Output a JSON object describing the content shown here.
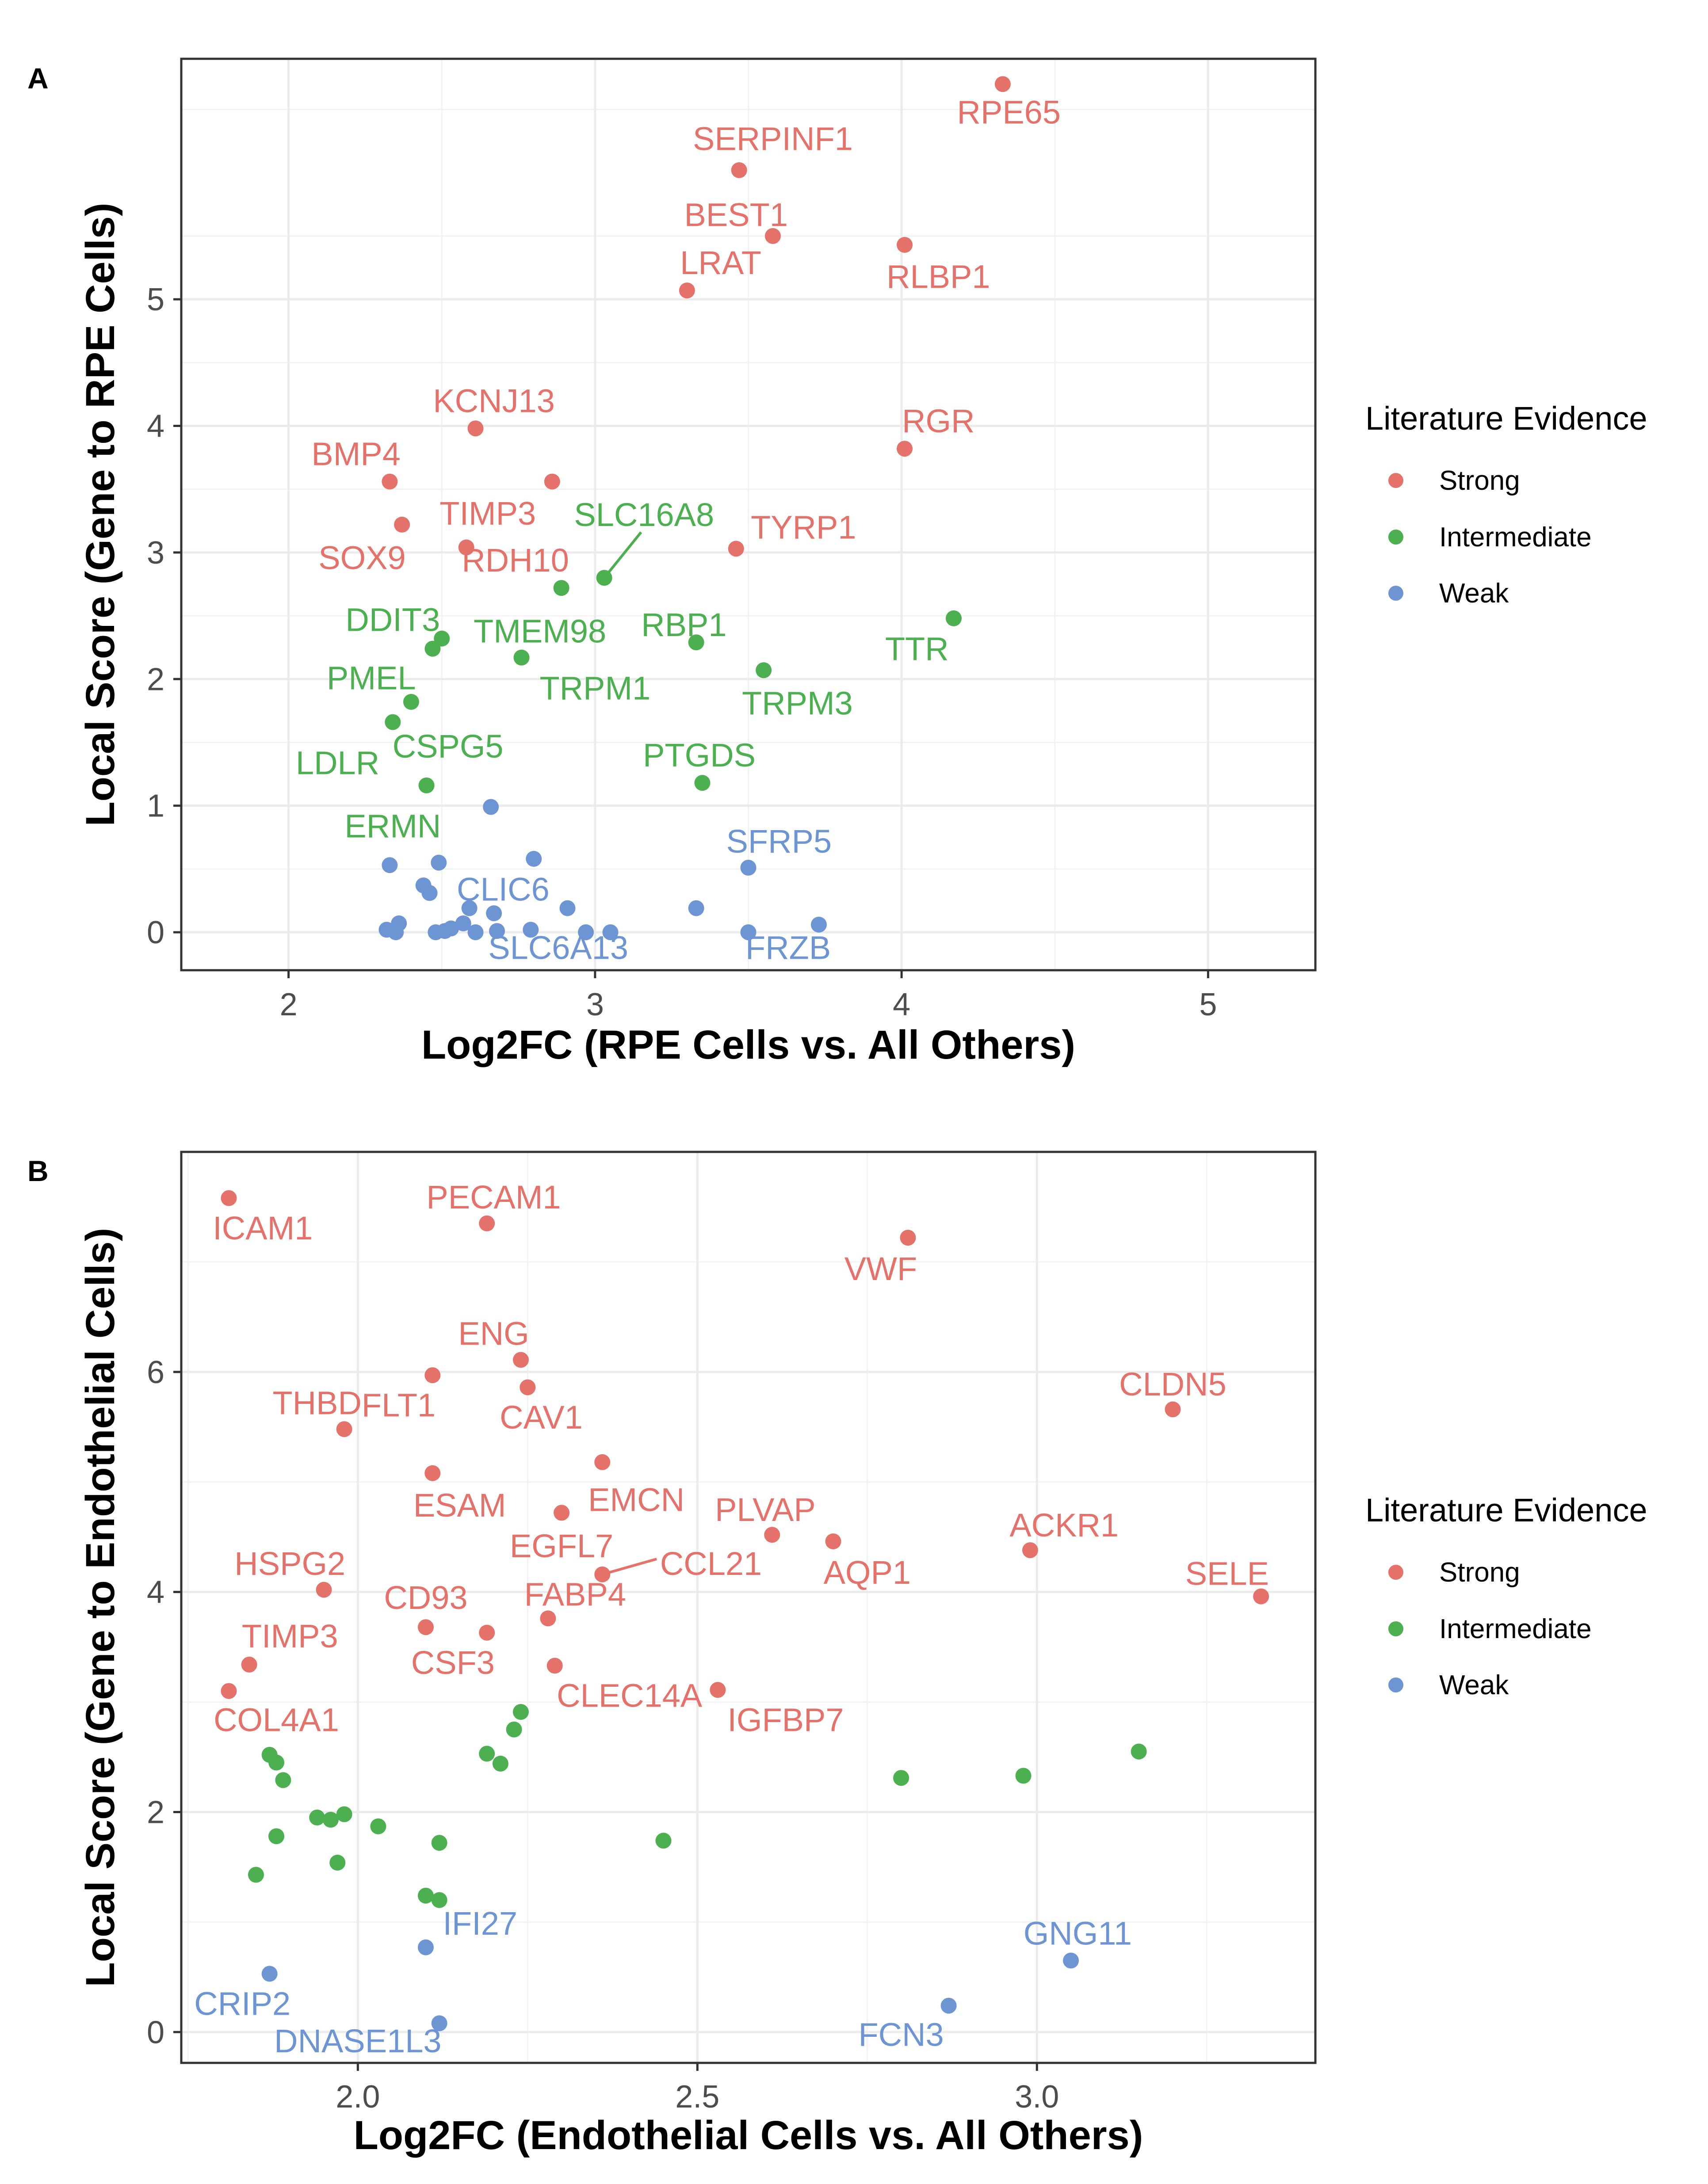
{
  "colors": {
    "Strong": "#e5726a",
    "Intermediate": "#4caf50",
    "Weak": "#6e95d3"
  },
  "chart_data": [
    {
      "panel": "A",
      "type": "scatter",
      "xlabel": "Log2FC (RPE Cells vs. All Others)",
      "ylabel": "Local Score (Gene to RPE Cells)",
      "xlim": [
        1.65,
        5.35
      ],
      "ylim": [
        -0.3,
        6.9
      ],
      "xticks": [
        2,
        3,
        4,
        5
      ],
      "yticks": [
        0,
        1,
        2,
        3,
        4,
        5
      ],
      "grid": true,
      "legend_title": "Literature Evidence",
      "legend_entries": [
        "Strong",
        "Intermediate",
        "Weak"
      ],
      "legend_position": "right",
      "points": [
        {
          "x": 4.33,
          "y": 6.7,
          "label": "RPE65",
          "cat": "Strong"
        },
        {
          "x": 3.47,
          "y": 6.02,
          "label": "SERPINF1",
          "cat": "Strong"
        },
        {
          "x": 3.58,
          "y": 5.5,
          "label": "BEST1",
          "cat": "Strong"
        },
        {
          "x": 4.01,
          "y": 5.43,
          "label": "RLBP1",
          "cat": "Strong"
        },
        {
          "x": 3.3,
          "y": 5.07,
          "label": "LRAT",
          "cat": "Strong"
        },
        {
          "x": 2.61,
          "y": 3.98,
          "label": "KCNJ13",
          "cat": "Strong"
        },
        {
          "x": 4.01,
          "y": 3.82,
          "label": "RGR",
          "cat": "Strong"
        },
        {
          "x": 2.33,
          "y": 3.56,
          "label": "BMP4",
          "cat": "Strong"
        },
        {
          "x": 2.86,
          "y": 3.56,
          "label": "TIMP3",
          "cat": "Strong"
        },
        {
          "x": 2.37,
          "y": 3.22,
          "label": "SOX9",
          "cat": "Strong"
        },
        {
          "x": 2.58,
          "y": 3.04,
          "label": "RDH10",
          "cat": "Strong"
        },
        {
          "x": 3.46,
          "y": 3.03,
          "label": "TYRP1",
          "cat": "Strong"
        },
        {
          "x": 3.03,
          "y": 2.8,
          "label": "SLC16A8",
          "cat": "Intermediate"
        },
        {
          "x": 2.89,
          "y": 2.72,
          "label": "TMEM98",
          "cat": "Intermediate"
        },
        {
          "x": 4.17,
          "y": 2.48,
          "label": "TTR",
          "cat": "Intermediate"
        },
        {
          "x": 2.5,
          "y": 2.32,
          "label": "DDIT3",
          "cat": "Intermediate"
        },
        {
          "x": 3.33,
          "y": 2.29,
          "label": "RBP1",
          "cat": "Intermediate"
        },
        {
          "x": 2.47,
          "y": 2.24,
          "label": "",
          "cat": "Intermediate"
        },
        {
          "x": 2.76,
          "y": 2.17,
          "label": "TRPM1",
          "cat": "Intermediate"
        },
        {
          "x": 3.55,
          "y": 2.07,
          "label": "TRPM3",
          "cat": "Intermediate"
        },
        {
          "x": 2.4,
          "y": 1.82,
          "label": "PMEL",
          "cat": "Intermediate"
        },
        {
          "x": 2.34,
          "y": 1.66,
          "label": "CSPG5",
          "cat": "Intermediate"
        },
        {
          "x": 2.45,
          "y": 1.16,
          "label": "LDLR",
          "cat": "Intermediate"
        },
        {
          "x": 3.35,
          "y": 1.18,
          "label": "PTGDS",
          "cat": "Intermediate"
        },
        {
          "x": 2.66,
          "y": 0.99,
          "label": "",
          "cat": "Weak"
        },
        {
          "x": 2.8,
          "y": 0.58,
          "label": "",
          "cat": "Weak"
        },
        {
          "x": 2.33,
          "y": 0.53,
          "label": "",
          "cat": "Weak"
        },
        {
          "x": 2.49,
          "y": 0.55,
          "label": "",
          "cat": "Weak"
        },
        {
          "x": 3.5,
          "y": 0.51,
          "label": "SFRP5",
          "cat": "Weak"
        },
        {
          "x": 2.44,
          "y": 0.37,
          "label": "",
          "cat": "Weak"
        },
        {
          "x": 2.46,
          "y": 0.31,
          "label": "",
          "cat": "Weak"
        },
        {
          "x": 2.59,
          "y": 0.19,
          "label": "",
          "cat": "Weak"
        },
        {
          "x": 2.67,
          "y": 0.15,
          "label": "",
          "cat": "Weak"
        },
        {
          "x": 2.91,
          "y": 0.19,
          "label": "",
          "cat": "Weak"
        },
        {
          "x": 3.33,
          "y": 0.19,
          "label": "",
          "cat": "Weak"
        },
        {
          "x": 2.36,
          "y": 0.07,
          "label": "",
          "cat": "Weak"
        },
        {
          "x": 2.57,
          "y": 0.07,
          "label": "",
          "cat": "Weak"
        },
        {
          "x": 3.73,
          "y": 0.06,
          "label": "",
          "cat": "Weak"
        },
        {
          "x": 2.32,
          "y": 0.02,
          "label": "",
          "cat": "Weak"
        },
        {
          "x": 2.35,
          "y": 0.0,
          "label": "",
          "cat": "Weak"
        },
        {
          "x": 2.48,
          "y": 0.0,
          "label": "",
          "cat": "Weak"
        },
        {
          "x": 2.51,
          "y": 0.01,
          "label": "",
          "cat": "Weak"
        },
        {
          "x": 2.53,
          "y": 0.03,
          "label": "",
          "cat": "Weak"
        },
        {
          "x": 2.61,
          "y": 0.0,
          "label": "",
          "cat": "Weak"
        },
        {
          "x": 2.68,
          "y": 0.01,
          "label": "",
          "cat": "Weak"
        },
        {
          "x": 2.79,
          "y": 0.02,
          "label": "",
          "cat": "Weak"
        },
        {
          "x": 2.97,
          "y": 0.0,
          "label": "",
          "cat": "Weak"
        },
        {
          "x": 3.05,
          "y": 0.0,
          "label": "",
          "cat": "Weak"
        },
        {
          "x": 3.5,
          "y": 0.0,
          "label": "",
          "cat": "Weak"
        }
      ],
      "text_labels": [
        {
          "text": "RPE65",
          "x": 4.35,
          "y": 6.48,
          "cat": "Strong"
        },
        {
          "text": "SERPINF1",
          "x": 3.58,
          "y": 6.27,
          "cat": "Strong"
        },
        {
          "text": "BEST1",
          "x": 3.46,
          "y": 5.67,
          "cat": "Strong"
        },
        {
          "text": "RLBP1",
          "x": 4.12,
          "y": 5.18,
          "cat": "Strong"
        },
        {
          "text": "LRAT",
          "x": 3.41,
          "y": 5.29,
          "cat": "Strong"
        },
        {
          "text": "KCNJ13",
          "x": 2.67,
          "y": 4.2,
          "cat": "Strong"
        },
        {
          "text": "RGR",
          "x": 4.12,
          "y": 4.04,
          "cat": "Strong"
        },
        {
          "text": "BMP4",
          "x": 2.22,
          "y": 3.78,
          "cat": "Strong"
        },
        {
          "text": "TIMP3",
          "x": 2.65,
          "y": 3.31,
          "cat": "Strong"
        },
        {
          "text": "SOX9",
          "x": 2.24,
          "y": 2.96,
          "cat": "Strong"
        },
        {
          "text": "RDH10",
          "x": 2.74,
          "y": 2.94,
          "cat": "Strong"
        },
        {
          "text": "TYRP1",
          "x": 3.68,
          "y": 3.2,
          "cat": "Strong"
        },
        {
          "text": "SLC16A8",
          "x": 3.16,
          "y": 3.3,
          "cat": "Intermediate"
        },
        {
          "text": "TMEM98",
          "x": 2.82,
          "y": 2.38,
          "cat": "Intermediate"
        },
        {
          "text": "TTR",
          "x": 4.05,
          "y": 2.24,
          "cat": "Intermediate"
        },
        {
          "text": "DDIT3",
          "x": 2.34,
          "y": 2.47,
          "cat": "Intermediate"
        },
        {
          "text": "RBP1",
          "x": 3.29,
          "y": 2.43,
          "cat": "Intermediate"
        },
        {
          "text": "TRPM1",
          "x": 3.0,
          "y": 1.93,
          "cat": "Intermediate"
        },
        {
          "text": "TRPM3",
          "x": 3.66,
          "y": 1.81,
          "cat": "Intermediate"
        },
        {
          "text": "PMEL",
          "x": 2.27,
          "y": 2.01,
          "cat": "Intermediate"
        },
        {
          "text": "CSPG5",
          "x": 2.52,
          "y": 1.47,
          "cat": "Intermediate"
        },
        {
          "text": "LDLR",
          "x": 2.16,
          "y": 1.34,
          "cat": "Intermediate"
        },
        {
          "text": "PTGDS",
          "x": 3.34,
          "y": 1.4,
          "cat": "Intermediate"
        },
        {
          "text": "ERMN",
          "x": 2.34,
          "y": 0.84,
          "cat": "Intermediate"
        },
        {
          "text": "SFRP5",
          "x": 3.6,
          "y": 0.72,
          "cat": "Weak"
        },
        {
          "text": "CLIC6",
          "x": 2.7,
          "y": 0.34,
          "cat": "Weak"
        },
        {
          "text": "SLC6A13",
          "x": 2.88,
          "y": -0.12,
          "cat": "Weak"
        },
        {
          "text": "FRZB",
          "x": 3.63,
          "y": -0.12,
          "cat": "Weak"
        }
      ],
      "leader_lines": [
        {
          "from": [
            3.03,
            2.8
          ],
          "to": [
            3.15,
            3.16
          ],
          "cat": "Intermediate"
        }
      ]
    },
    {
      "panel": "B",
      "type": "scatter",
      "xlabel": "Log2FC (Endothelial Cells vs. All Others)",
      "ylabel": "Local Score (Gene to Endothelial Cells)",
      "xlim": [
        1.74,
        3.41
      ],
      "ylim": [
        -0.28,
        8.0
      ],
      "xticks": [
        2.0,
        2.5,
        3.0
      ],
      "yticks": [
        0,
        2,
        4,
        6
      ],
      "grid": true,
      "legend_title": "Literature Evidence",
      "legend_entries": [
        "Strong",
        "Intermediate",
        "Weak"
      ],
      "legend_position": "right",
      "points": [
        {
          "x": 1.81,
          "y": 7.58,
          "label": "ICAM1",
          "cat": "Strong"
        },
        {
          "x": 2.19,
          "y": 7.35,
          "label": "PECAM1",
          "cat": "Strong"
        },
        {
          "x": 2.81,
          "y": 7.22,
          "label": "VWF",
          "cat": "Strong"
        },
        {
          "x": 2.24,
          "y": 6.11,
          "label": "ENG",
          "cat": "Strong"
        },
        {
          "x": 2.11,
          "y": 5.97,
          "label": "FLT1",
          "cat": "Strong"
        },
        {
          "x": 2.25,
          "y": 5.86,
          "label": "CAV1",
          "cat": "Strong"
        },
        {
          "x": 3.2,
          "y": 5.66,
          "label": "CLDN5",
          "cat": "Strong"
        },
        {
          "x": 1.98,
          "y": 5.48,
          "label": "THBD",
          "cat": "Strong"
        },
        {
          "x": 2.36,
          "y": 5.18,
          "label": "EMCN",
          "cat": "Strong"
        },
        {
          "x": 2.11,
          "y": 5.08,
          "label": "ESAM",
          "cat": "Strong"
        },
        {
          "x": 2.3,
          "y": 4.72,
          "label": "EGFL7",
          "cat": "Strong"
        },
        {
          "x": 2.61,
          "y": 4.52,
          "label": "PLVAP",
          "cat": "Strong"
        },
        {
          "x": 2.7,
          "y": 4.46,
          "label": "AQP1",
          "cat": "Strong"
        },
        {
          "x": 2.99,
          "y": 4.38,
          "label": "ACKR1",
          "cat": "Strong"
        },
        {
          "x": 2.36,
          "y": 4.16,
          "label": "CCL21",
          "cat": "Strong"
        },
        {
          "x": 1.95,
          "y": 4.02,
          "label": "HSPG2",
          "cat": "Strong"
        },
        {
          "x": 3.33,
          "y": 3.96,
          "label": "SELE",
          "cat": "Strong"
        },
        {
          "x": 2.28,
          "y": 3.76,
          "label": "FABP4",
          "cat": "Strong"
        },
        {
          "x": 2.1,
          "y": 3.68,
          "label": "CD93",
          "cat": "Strong"
        },
        {
          "x": 2.19,
          "y": 3.63,
          "label": "CSF3",
          "cat": "Strong"
        },
        {
          "x": 1.84,
          "y": 3.34,
          "label": "TIMP3",
          "cat": "Strong"
        },
        {
          "x": 2.29,
          "y": 3.33,
          "label": "CLEC14A",
          "cat": "Strong"
        },
        {
          "x": 1.81,
          "y": 3.1,
          "label": "COL4A1",
          "cat": "Strong"
        },
        {
          "x": 2.53,
          "y": 3.11,
          "label": "IGFBP7",
          "cat": "Strong"
        },
        {
          "x": 2.24,
          "y": 2.91,
          "cat": "Intermediate"
        },
        {
          "x": 2.23,
          "y": 2.75,
          "cat": "Intermediate"
        },
        {
          "x": 3.15,
          "y": 2.55,
          "cat": "Intermediate"
        },
        {
          "x": 2.19,
          "y": 2.53,
          "cat": "Intermediate"
        },
        {
          "x": 1.87,
          "y": 2.52,
          "cat": "Intermediate"
        },
        {
          "x": 1.88,
          "y": 2.45,
          "cat": "Intermediate"
        },
        {
          "x": 2.21,
          "y": 2.44,
          "cat": "Intermediate"
        },
        {
          "x": 1.89,
          "y": 2.29,
          "cat": "Intermediate"
        },
        {
          "x": 2.8,
          "y": 2.31,
          "cat": "Intermediate"
        },
        {
          "x": 2.98,
          "y": 2.33,
          "cat": "Intermediate"
        },
        {
          "x": 1.98,
          "y": 1.98,
          "cat": "Intermediate"
        },
        {
          "x": 1.94,
          "y": 1.95,
          "cat": "Intermediate"
        },
        {
          "x": 1.96,
          "y": 1.93,
          "cat": "Intermediate"
        },
        {
          "x": 2.03,
          "y": 1.87,
          "cat": "Intermediate"
        },
        {
          "x": 1.88,
          "y": 1.78,
          "cat": "Intermediate"
        },
        {
          "x": 2.12,
          "y": 1.72,
          "cat": "Intermediate"
        },
        {
          "x": 2.45,
          "y": 1.74,
          "cat": "Intermediate"
        },
        {
          "x": 1.97,
          "y": 1.54,
          "cat": "Intermediate"
        },
        {
          "x": 1.85,
          "y": 1.43,
          "cat": "Intermediate"
        },
        {
          "x": 2.1,
          "y": 1.24,
          "cat": "Intermediate"
        },
        {
          "x": 2.12,
          "y": 1.2,
          "cat": "Intermediate"
        },
        {
          "x": 2.1,
          "y": 0.77,
          "label": "IFI27",
          "cat": "Weak"
        },
        {
          "x": 3.05,
          "y": 0.65,
          "label": "GNG11",
          "cat": "Weak"
        },
        {
          "x": 1.87,
          "y": 0.53,
          "label": "CRIP2",
          "cat": "Weak"
        },
        {
          "x": 2.87,
          "y": 0.24,
          "label": "FCN3",
          "cat": "Weak"
        },
        {
          "x": 2.12,
          "y": 0.08,
          "label": "DNASE1L3",
          "cat": "Weak"
        }
      ],
      "text_labels": [
        {
          "text": "ICAM1",
          "x": 1.86,
          "y": 7.31,
          "cat": "Strong"
        },
        {
          "text": "PECAM1",
          "x": 2.2,
          "y": 7.59,
          "cat": "Strong"
        },
        {
          "text": "VWF",
          "x": 2.77,
          "y": 6.94,
          "cat": "Strong"
        },
        {
          "text": "ENG",
          "x": 2.2,
          "y": 6.35,
          "cat": "Strong"
        },
        {
          "text": "FLT1",
          "x": 2.06,
          "y": 5.7,
          "cat": "Strong"
        },
        {
          "text": "CAV1",
          "x": 2.27,
          "y": 5.59,
          "cat": "Strong"
        },
        {
          "text": "CLDN5",
          "x": 3.2,
          "y": 5.89,
          "cat": "Strong"
        },
        {
          "text": "THBD",
          "x": 1.94,
          "y": 5.72,
          "cat": "Strong"
        },
        {
          "text": "EMCN",
          "x": 2.41,
          "y": 4.84,
          "cat": "Strong"
        },
        {
          "text": "ESAM",
          "x": 2.15,
          "y": 4.79,
          "cat": "Strong"
        },
        {
          "text": "EGFL7",
          "x": 2.3,
          "y": 4.42,
          "cat": "Strong"
        },
        {
          "text": "PLVAP",
          "x": 2.6,
          "y": 4.75,
          "cat": "Strong"
        },
        {
          "text": "AQP1",
          "x": 2.75,
          "y": 4.18,
          "cat": "Strong"
        },
        {
          "text": "ACKR1",
          "x": 3.04,
          "y": 4.61,
          "cat": "Strong"
        },
        {
          "text": "CCL21",
          "x": 2.52,
          "y": 4.26,
          "cat": "Strong"
        },
        {
          "text": "HSPG2",
          "x": 1.9,
          "y": 4.26,
          "cat": "Strong"
        },
        {
          "text": "SELE",
          "x": 3.28,
          "y": 4.17,
          "cat": "Strong"
        },
        {
          "text": "FABP4",
          "x": 2.32,
          "y": 3.98,
          "cat": "Strong"
        },
        {
          "text": "CD93",
          "x": 2.1,
          "y": 3.95,
          "cat": "Strong"
        },
        {
          "text": "CSF3",
          "x": 2.14,
          "y": 3.36,
          "cat": "Strong"
        },
        {
          "text": "TIMP3",
          "x": 1.9,
          "y": 3.6,
          "cat": "Strong"
        },
        {
          "text": "CLEC14A",
          "x": 2.4,
          "y": 3.06,
          "cat": "Strong"
        },
        {
          "text": "COL4A1",
          "x": 1.88,
          "y": 2.84,
          "cat": "Strong"
        },
        {
          "text": "IGFBP7",
          "x": 2.63,
          "y": 2.84,
          "cat": "Strong"
        },
        {
          "text": "IFI27",
          "x": 2.18,
          "y": 0.99,
          "cat": "Weak"
        },
        {
          "text": "GNG11",
          "x": 3.06,
          "y": 0.9,
          "cat": "Weak"
        },
        {
          "text": "CRIP2",
          "x": 1.83,
          "y": 0.26,
          "cat": "Weak"
        },
        {
          "text": "FCN3",
          "x": 2.8,
          "y": -0.02,
          "cat": "Weak"
        },
        {
          "text": "DNASE1L3",
          "x": 2.0,
          "y": -0.08,
          "cat": "Weak"
        }
      ],
      "leader_lines": [
        {
          "from": [
            2.36,
            4.16
          ],
          "to": [
            2.44,
            4.3
          ],
          "cat": "Strong"
        }
      ]
    }
  ]
}
